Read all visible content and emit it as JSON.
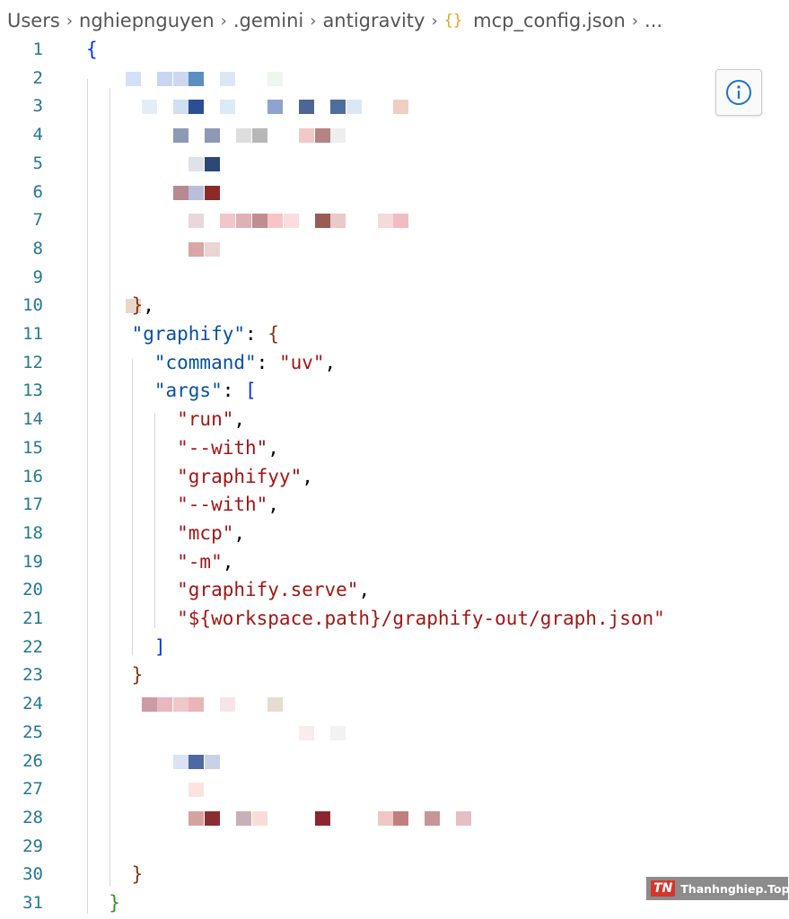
{
  "breadcrumb": {
    "items": [
      "Users",
      "nghiepnguyen",
      ".gemini",
      "antigravity",
      "{}",
      "mcp_config.json",
      "..."
    ]
  },
  "editor": {
    "lines": [
      {
        "number": 1,
        "tokens": [
          {
            "text": "{",
            "color": "#0431fa"
          }
        ]
      },
      {
        "number": 2
      },
      {
        "number": 3
      },
      {
        "number": 4
      },
      {
        "number": 5
      },
      {
        "number": 6
      },
      {
        "number": 7
      },
      {
        "number": 8
      },
      {
        "number": 9
      },
      {
        "number": 10,
        "tokens": [
          {
            "text": "    }",
            "color": "#7b3814"
          },
          {
            "text": ",",
            "color": "#000000"
          }
        ]
      },
      {
        "number": 11,
        "tokens": [
          {
            "text": "    \"graphify\"",
            "color": "#0451a5"
          },
          {
            "text": ": ",
            "color": "#000000"
          },
          {
            "text": "{",
            "color": "#7b3814"
          }
        ]
      },
      {
        "number": 12,
        "tokens": [
          {
            "text": "      \"command\"",
            "color": "#0451a5"
          },
          {
            "text": ": ",
            "color": "#000000"
          },
          {
            "text": "\"uv\"",
            "color": "#a31515"
          },
          {
            "text": ",",
            "color": "#000000"
          }
        ]
      },
      {
        "number": 13,
        "tokens": [
          {
            "text": "      \"args\"",
            "color": "#0451a5"
          },
          {
            "text": ": ",
            "color": "#000000"
          },
          {
            "text": "[",
            "color": "#0431fa"
          }
        ]
      },
      {
        "number": 14,
        "tokens": [
          {
            "text": "        \"run\"",
            "color": "#a31515"
          },
          {
            "text": ",",
            "color": "#000000"
          }
        ]
      },
      {
        "number": 15,
        "tokens": [
          {
            "text": "        \"--with\"",
            "color": "#a31515"
          },
          {
            "text": ",",
            "color": "#000000"
          }
        ]
      },
      {
        "number": 16,
        "tokens": [
          {
            "text": "        \"graphifyy\"",
            "color": "#a31515"
          },
          {
            "text": ",",
            "color": "#000000"
          }
        ]
      },
      {
        "number": 17,
        "tokens": [
          {
            "text": "        \"--with\"",
            "color": "#a31515"
          },
          {
            "text": ",",
            "color": "#000000"
          }
        ]
      },
      {
        "number": 18,
        "tokens": [
          {
            "text": "        \"mcp\"",
            "color": "#a31515"
          },
          {
            "text": ",",
            "color": "#000000"
          }
        ]
      },
      {
        "number": 19,
        "tokens": [
          {
            "text": "        \"-m\"",
            "color": "#a31515"
          },
          {
            "text": ",",
            "color": "#000000"
          }
        ]
      },
      {
        "number": 20,
        "tokens": [
          {
            "text": "        \"graphify.serve\"",
            "color": "#a31515"
          },
          {
            "text": ",",
            "color": "#000000"
          }
        ]
      },
      {
        "number": 21,
        "tokens": [
          {
            "text": "        \"${workspace.path}/graphify-out/graph.json\"",
            "color": "#a31515"
          }
        ]
      },
      {
        "number": 22,
        "tokens": [
          {
            "text": "      ]",
            "color": "#0431fa"
          }
        ]
      },
      {
        "number": 23,
        "tokens": [
          {
            "text": "    }",
            "color": "#7b3814"
          }
        ]
      },
      {
        "number": 24
      },
      {
        "number": 25
      },
      {
        "number": 26
      },
      {
        "number": 27
      },
      {
        "number": 28
      },
      {
        "number": 29
      },
      {
        "number": 30,
        "tokens": [
          {
            "text": "    }",
            "color": "#7b3814"
          }
        ]
      },
      {
        "number": 31,
        "tokens": [
          {
            "text": "  }",
            "color": "#319331"
          }
        ]
      }
    ]
  },
  "watermark": {
    "logo": "TN",
    "text": "Thanhnghiep.Top"
  }
}
